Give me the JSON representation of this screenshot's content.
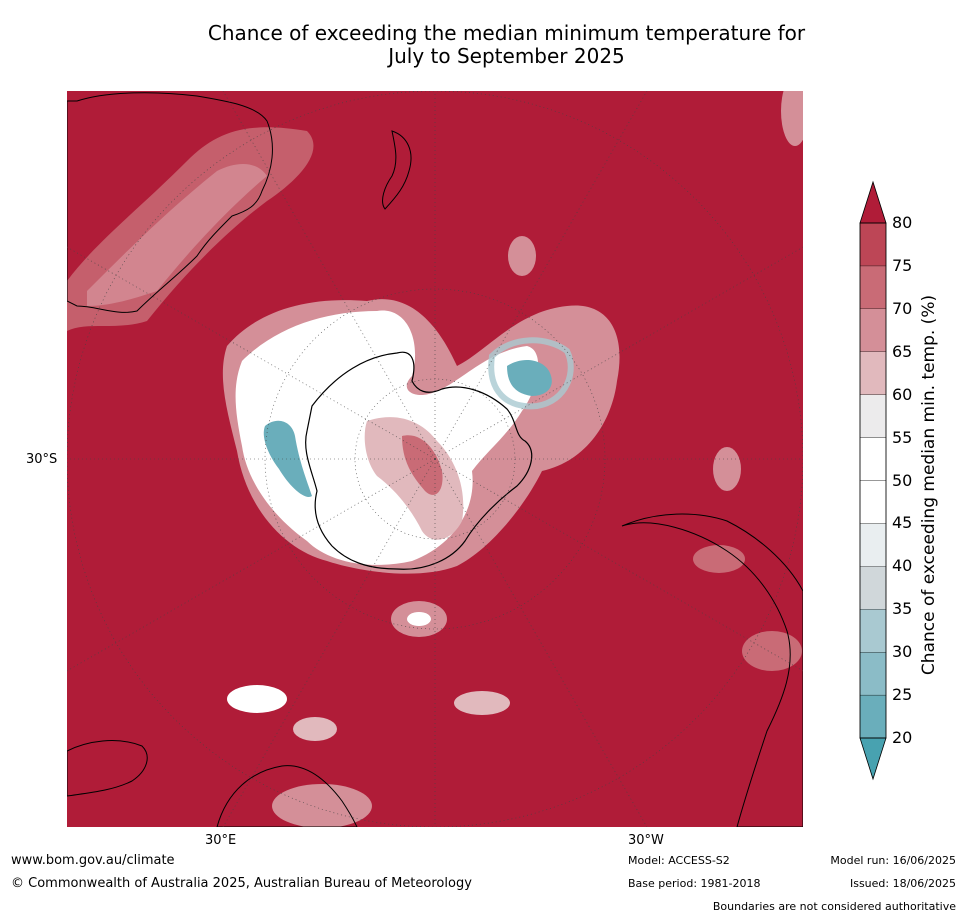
{
  "title_line1": "Chance of exceeding the median minimum temperature for",
  "title_line2": "July to September 2025",
  "map": {
    "projection": "south-polar-stereographic",
    "lat_labels": [
      {
        "text": "30°S"
      }
    ],
    "lon_labels": [
      {
        "text": "30°E"
      },
      {
        "text": "30°W"
      }
    ],
    "colors": {
      "above_80": "#b01c38",
      "ocean_dominant": "#b01c38",
      "antarctic_interior": "#ffffff",
      "coastline": "#000000",
      "boundary": "#888888",
      "gridline": "#444444"
    }
  },
  "colorbar": {
    "title": "Chance of exceeding median min. temp. (%)",
    "ticks": [
      "20",
      "25",
      "30",
      "35",
      "40",
      "45",
      "50",
      "55",
      "60",
      "65",
      "70",
      "75",
      "80"
    ],
    "bin_colors": [
      "#6aaebb",
      "#8bbcc7",
      "#a9c9d1",
      "#d0d7da",
      "#e9eef0",
      "#ffffff",
      "#ffffff",
      "#ecebec",
      "#e1b9bd",
      "#d48f98",
      "#c96b76",
      "#bd4656"
    ],
    "under_color": "#48a2b0",
    "over_color": "#b01c38"
  },
  "footer": {
    "website": "www.bom.gov.au/climate",
    "copyright": "© Commonwealth of Australia 2025, Australian Bureau of Meteorology",
    "model": "Model: ACCESS-S2",
    "base_period": "Base period: 1981-2018",
    "model_run": "Model run: 16/06/2025",
    "issued": "Issued: 18/06/2025",
    "disclaimer": "Boundaries are not considered authoritative"
  }
}
